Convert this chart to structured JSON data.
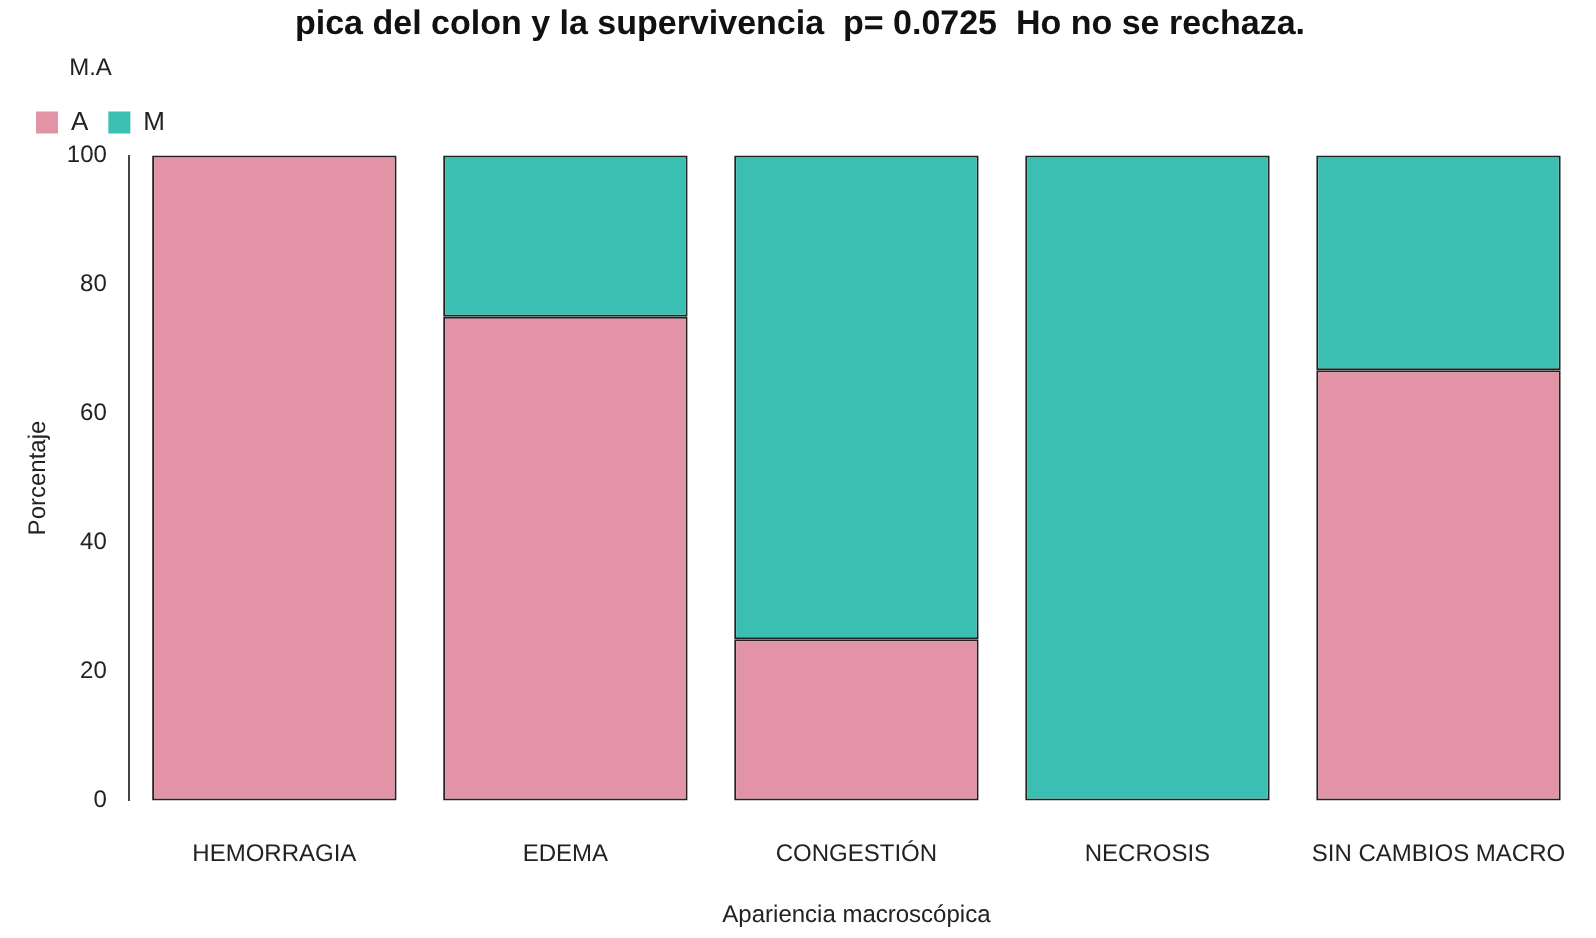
{
  "chart_data": {
    "type": "bar",
    "title": "pica del colon y la supervivencia  p= 0.0725  Ho no se rechaza.",
    "xlabel": "Apariencia macroscópica",
    "ylabel": "Porcentaje",
    "legend_title": "M.A",
    "legend": "top left",
    "stacked": true,
    "grid": false,
    "categories": [
      "HEMORRAGIA",
      "EDEMA",
      "CONGESTIÓN",
      "NECROSIS",
      "SIN CAMBIOS MACRO"
    ],
    "series": [
      {
        "name": "A",
        "color": "#e293a5",
        "values": [
          100,
          75,
          25,
          0,
          66.7
        ]
      },
      {
        "name": "M",
        "color": "#3bbfb2",
        "values": [
          0,
          25,
          75,
          100,
          33.3
        ]
      }
    ],
    "ylim": [
      0,
      100
    ],
    "yticks": [
      0,
      20,
      40,
      60,
      80,
      100
    ]
  }
}
